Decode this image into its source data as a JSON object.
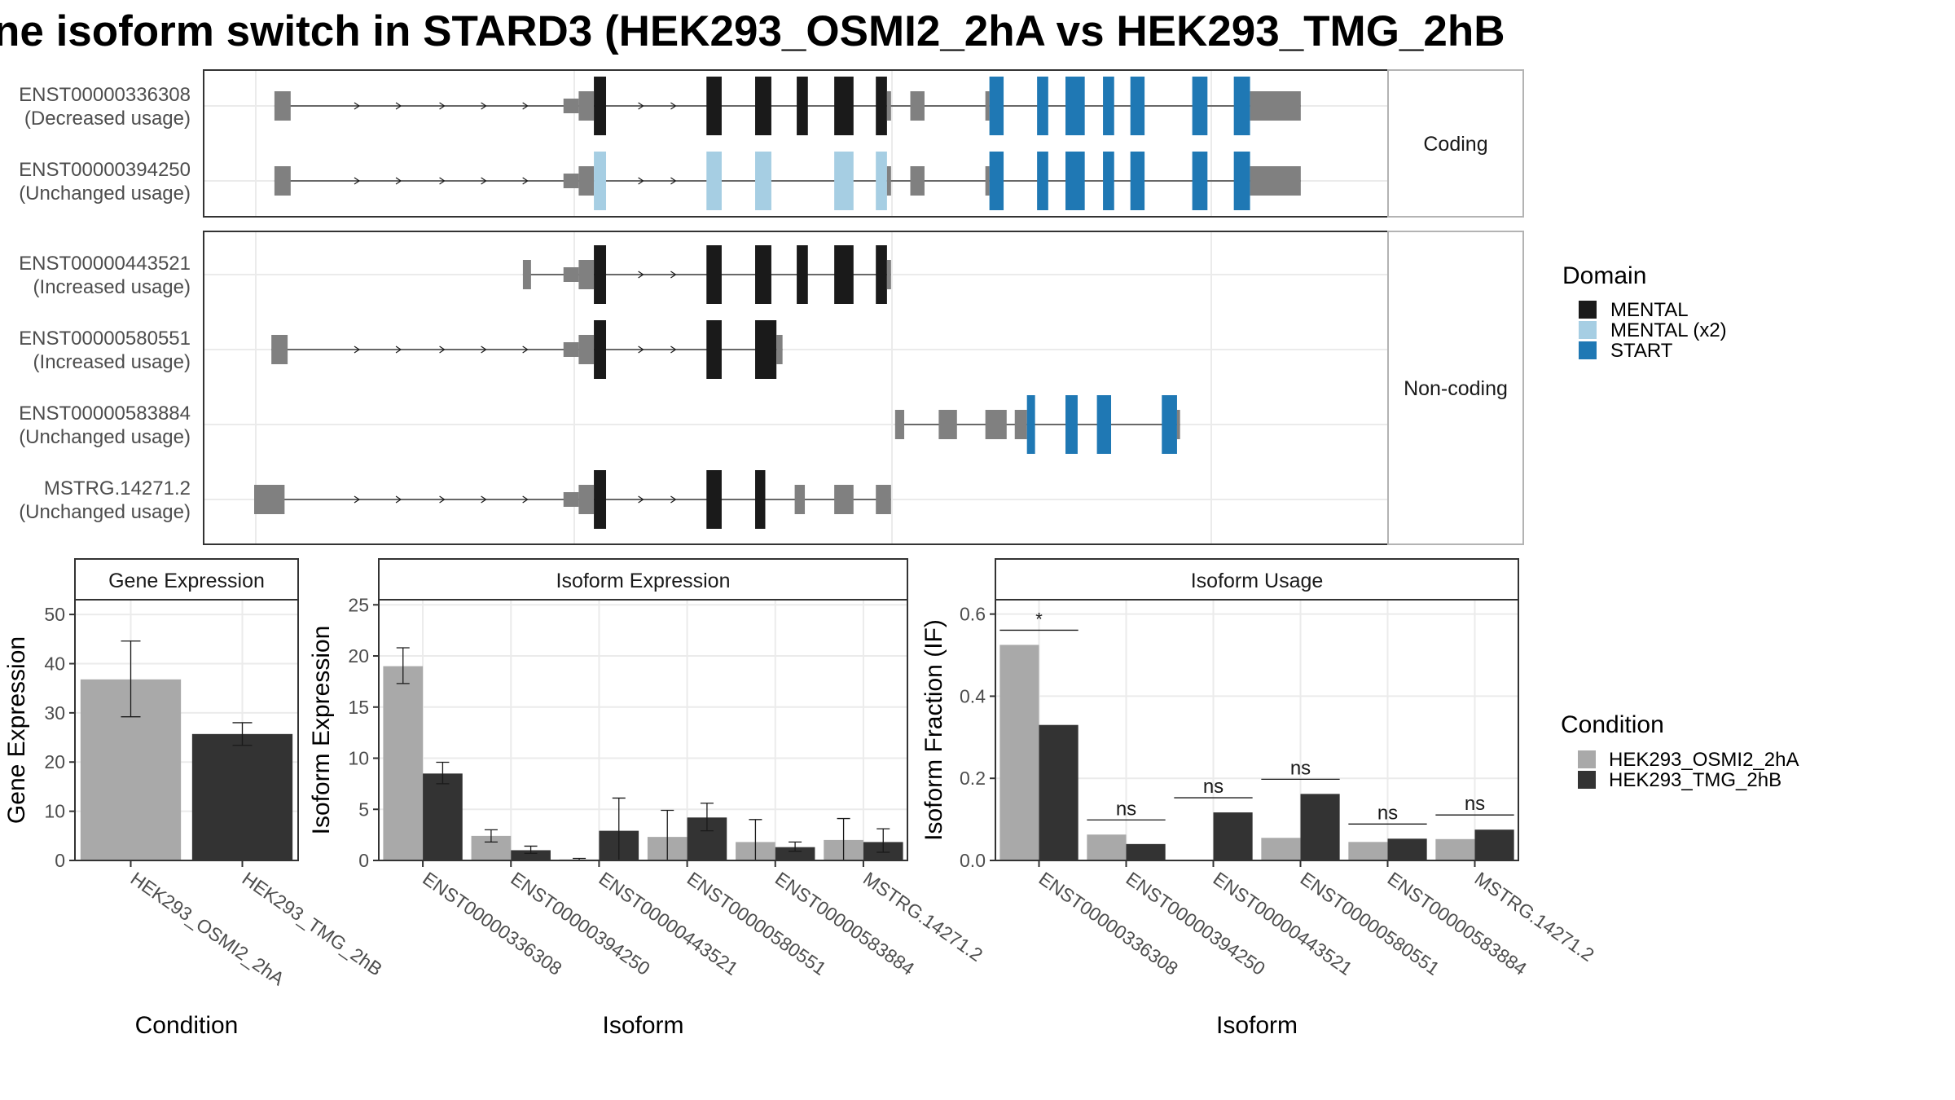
{
  "title": "ne isoform switch in STARD3 (HEK293_OSMI2_2hA vs HEK293_TMG_2hB",
  "colors": {
    "utr": "#808080",
    "mental": "#1a1a1a",
    "mental_x2": "#a6cee3",
    "start": "#1f78b4",
    "osmi": "#a9a9a9",
    "tmg": "#333333",
    "grid": "#ebebeb",
    "frame": "#333333",
    "strip_frame": "#b3b3b3"
  },
  "structure": {
    "x_range": [
      0,
      100
    ],
    "panels": [
      {
        "label": "Coding",
        "transcripts": [
          {
            "name": "ENST00000336308",
            "usage": "(Decreased usage)",
            "segments": [
              [
                2.0,
                3.6,
                "utr"
              ],
              [
                30.5,
                32.0,
                "utr_small"
              ],
              [
                32.0,
                33.5,
                "utr"
              ],
              [
                33.5,
                34.7,
                "mental"
              ],
              [
                44.6,
                46.1,
                "mental"
              ],
              [
                49.4,
                51.0,
                "mental"
              ],
              [
                53.5,
                54.6,
                "mental"
              ],
              [
                57.2,
                59.1,
                "mental"
              ],
              [
                61.3,
                62.4,
                "mental"
              ],
              [
                62.4,
                62.8,
                "utr"
              ],
              [
                64.7,
                66.1,
                "utr"
              ],
              [
                72.1,
                72.5,
                "utr"
              ],
              [
                72.5,
                73.9,
                "start"
              ],
              [
                77.2,
                78.3,
                "start"
              ],
              [
                80.0,
                81.9,
                "start"
              ],
              [
                83.7,
                84.8,
                "start"
              ],
              [
                86.4,
                87.8,
                "start"
              ],
              [
                92.5,
                94.0,
                "start"
              ],
              [
                96.6,
                98.2,
                "start"
              ],
              [
                98.2,
                103.2,
                "utr"
              ]
            ],
            "arrows": [
              10.2,
              14.3,
              18.6,
              22.7,
              26.8,
              38.2,
              41.4
            ]
          },
          {
            "name": "ENST00000394250",
            "usage": "(Unchanged usage)",
            "segments": [
              [
                2.0,
                3.6,
                "utr"
              ],
              [
                30.5,
                32.0,
                "utr_small"
              ],
              [
                32.0,
                33.5,
                "utr"
              ],
              [
                33.5,
                34.7,
                "mental_x2"
              ],
              [
                44.6,
                46.1,
                "mental_x2"
              ],
              [
                49.4,
                51.0,
                "mental_x2"
              ],
              [
                57.2,
                59.1,
                "mental_x2"
              ],
              [
                61.3,
                62.4,
                "mental_x2"
              ],
              [
                62.4,
                62.8,
                "utr"
              ],
              [
                64.7,
                66.1,
                "utr"
              ],
              [
                72.1,
                72.5,
                "utr"
              ],
              [
                72.5,
                73.9,
                "start"
              ],
              [
                77.2,
                78.3,
                "start"
              ],
              [
                80.0,
                81.9,
                "start"
              ],
              [
                83.7,
                84.8,
                "start"
              ],
              [
                86.4,
                87.8,
                "start"
              ],
              [
                92.5,
                94.0,
                "start"
              ],
              [
                96.6,
                98.2,
                "start"
              ],
              [
                98.2,
                103.2,
                "utr"
              ]
            ],
            "arrows": [
              10.2,
              14.3,
              18.6,
              22.7,
              26.8,
              38.2,
              41.4
            ]
          }
        ]
      },
      {
        "label": "Non-coding",
        "transcripts": [
          {
            "name": "ENST00000443521",
            "usage": "(Increased usage)",
            "segments": [
              [
                26.5,
                27.3,
                "utr"
              ],
              [
                30.5,
                32.0,
                "utr_small"
              ],
              [
                32.0,
                33.5,
                "utr"
              ],
              [
                33.5,
                34.7,
                "mental"
              ],
              [
                44.6,
                46.1,
                "mental"
              ],
              [
                49.4,
                51.0,
                "mental"
              ],
              [
                53.5,
                54.6,
                "mental"
              ],
              [
                57.2,
                59.1,
                "mental"
              ],
              [
                61.3,
                62.4,
                "mental"
              ],
              [
                62.4,
                62.8,
                "utr"
              ]
            ],
            "arrows": [
              38.2,
              41.4
            ]
          },
          {
            "name": "ENST00000580551",
            "usage": "(Increased usage)",
            "segments": [
              [
                1.7,
                3.3,
                "utr"
              ],
              [
                30.5,
                32.0,
                "utr_small"
              ],
              [
                32.0,
                33.5,
                "utr"
              ],
              [
                33.5,
                34.7,
                "mental"
              ],
              [
                44.6,
                46.1,
                "mental"
              ],
              [
                49.4,
                51.5,
                "mental"
              ],
              [
                51.5,
                52.1,
                "utr"
              ]
            ],
            "arrows": [
              10.2,
              14.3,
              18.6,
              22.7,
              26.8,
              38.2,
              41.4
            ]
          },
          {
            "name": "ENST00000583884",
            "usage": "(Unchanged usage)",
            "segments": [
              [
                63.2,
                64.1,
                "utr"
              ],
              [
                67.5,
                69.3,
                "utr"
              ],
              [
                72.1,
                74.2,
                "utr"
              ],
              [
                75.0,
                76.2,
                "utr"
              ],
              [
                76.2,
                77.0,
                "start"
              ],
              [
                80.0,
                81.2,
                "start"
              ],
              [
                83.1,
                84.5,
                "start"
              ],
              [
                89.5,
                91.0,
                "start"
              ],
              [
                91.0,
                91.3,
                "utr"
              ]
            ],
            "arrows": []
          },
          {
            "name": "MSTRG.14271.2",
            "usage": "(Unchanged usage)",
            "segments": [
              [
                0.0,
                3.0,
                "utr"
              ],
              [
                30.5,
                32.0,
                "utr_small"
              ],
              [
                32.0,
                33.5,
                "utr"
              ],
              [
                33.5,
                34.7,
                "mental"
              ],
              [
                44.6,
                46.1,
                "mental"
              ],
              [
                49.4,
                50.4,
                "mental"
              ],
              [
                53.3,
                54.3,
                "utr"
              ],
              [
                57.2,
                59.1,
                "utr"
              ],
              [
                61.3,
                62.8,
                "utr"
              ]
            ],
            "arrows": [
              10.2,
              14.3,
              18.6,
              22.7,
              26.8,
              38.2,
              41.4
            ]
          }
        ]
      }
    ]
  },
  "legends": {
    "domain_title": "Domain",
    "domain_items": [
      {
        "label": "MENTAL",
        "color": "#1a1a1a"
      },
      {
        "label": "MENTAL (x2)",
        "color": "#a6cee3"
      },
      {
        "label": "START",
        "color": "#1f78b4"
      }
    ],
    "condition_title": "Condition",
    "condition_items": [
      {
        "label": "HEK293_OSMI2_2hA",
        "color": "#a9a9a9"
      },
      {
        "label": "HEK293_TMG_2hB",
        "color": "#333333"
      }
    ]
  },
  "chart_data": [
    {
      "type": "bar",
      "title": "Gene Expression",
      "xlabel": "Condition",
      "ylabel": "Gene Expression",
      "ylim": [
        0,
        53
      ],
      "yticks": [
        0,
        10,
        20,
        30,
        40,
        50
      ],
      "categories": [
        "HEK293_OSMI2_2hA",
        "HEK293_TMG_2hB"
      ],
      "values": [
        36.8,
        25.7
      ],
      "errors": [
        [
          29.2,
          44.6
        ],
        [
          23.4,
          28.0
        ]
      ]
    },
    {
      "type": "bar",
      "title": "Isoform Expression",
      "xlabel": "Isoform",
      "ylabel": "Isoform Expression",
      "ylim": [
        0,
        25.5
      ],
      "yticks": [
        0,
        5,
        10,
        15,
        20,
        25
      ],
      "categories": [
        "ENST00000336308",
        "ENST00000394250",
        "ENST00000443521",
        "ENST00000580551",
        "ENST00000583884",
        "MSTRG.14271.2"
      ],
      "series": [
        {
          "name": "HEK293_OSMI2_2hA",
          "values": [
            19.0,
            2.4,
            0.1,
            2.3,
            1.8,
            2.0
          ],
          "errors": [
            [
              17.3,
              20.8
            ],
            [
              1.8,
              3.0
            ],
            [
              0.0,
              0.2
            ],
            [
              0.0,
              4.9
            ],
            [
              0.0,
              4.0
            ],
            [
              0.0,
              4.1
            ]
          ]
        },
        {
          "name": "HEK293_TMG_2hB",
          "values": [
            8.5,
            1.0,
            2.9,
            4.2,
            1.3,
            1.8
          ],
          "errors": [
            [
              7.5,
              9.6
            ],
            [
              0.7,
              1.4
            ],
            [
              0.0,
              6.1
            ],
            [
              2.9,
              5.6
            ],
            [
              0.9,
              1.8
            ],
            [
              0.8,
              3.1
            ]
          ]
        }
      ]
    },
    {
      "type": "bar",
      "title": "Isoform Usage",
      "xlabel": "Isoform",
      "ylabel": "Isoform Fraction (IF)",
      "ylim": [
        0,
        0.635
      ],
      "yticks": [
        "0.0",
        "0.2",
        "0.4",
        "0.6"
      ],
      "categories": [
        "ENST00000336308",
        "ENST00000394250",
        "ENST00000443521",
        "ENST00000580551",
        "ENST00000583884",
        "MSTRG.14271.2"
      ],
      "series": [
        {
          "name": "HEK293_OSMI2_2hA",
          "values": [
            0.525,
            0.063,
            0.0,
            0.055,
            0.045,
            0.052
          ]
        },
        {
          "name": "HEK293_TMG_2hB",
          "values": [
            0.33,
            0.04,
            0.117,
            0.162,
            0.053,
            0.075
          ]
        }
      ],
      "significance": [
        "*",
        "ns",
        "ns",
        "ns",
        "ns",
        "ns"
      ]
    }
  ]
}
